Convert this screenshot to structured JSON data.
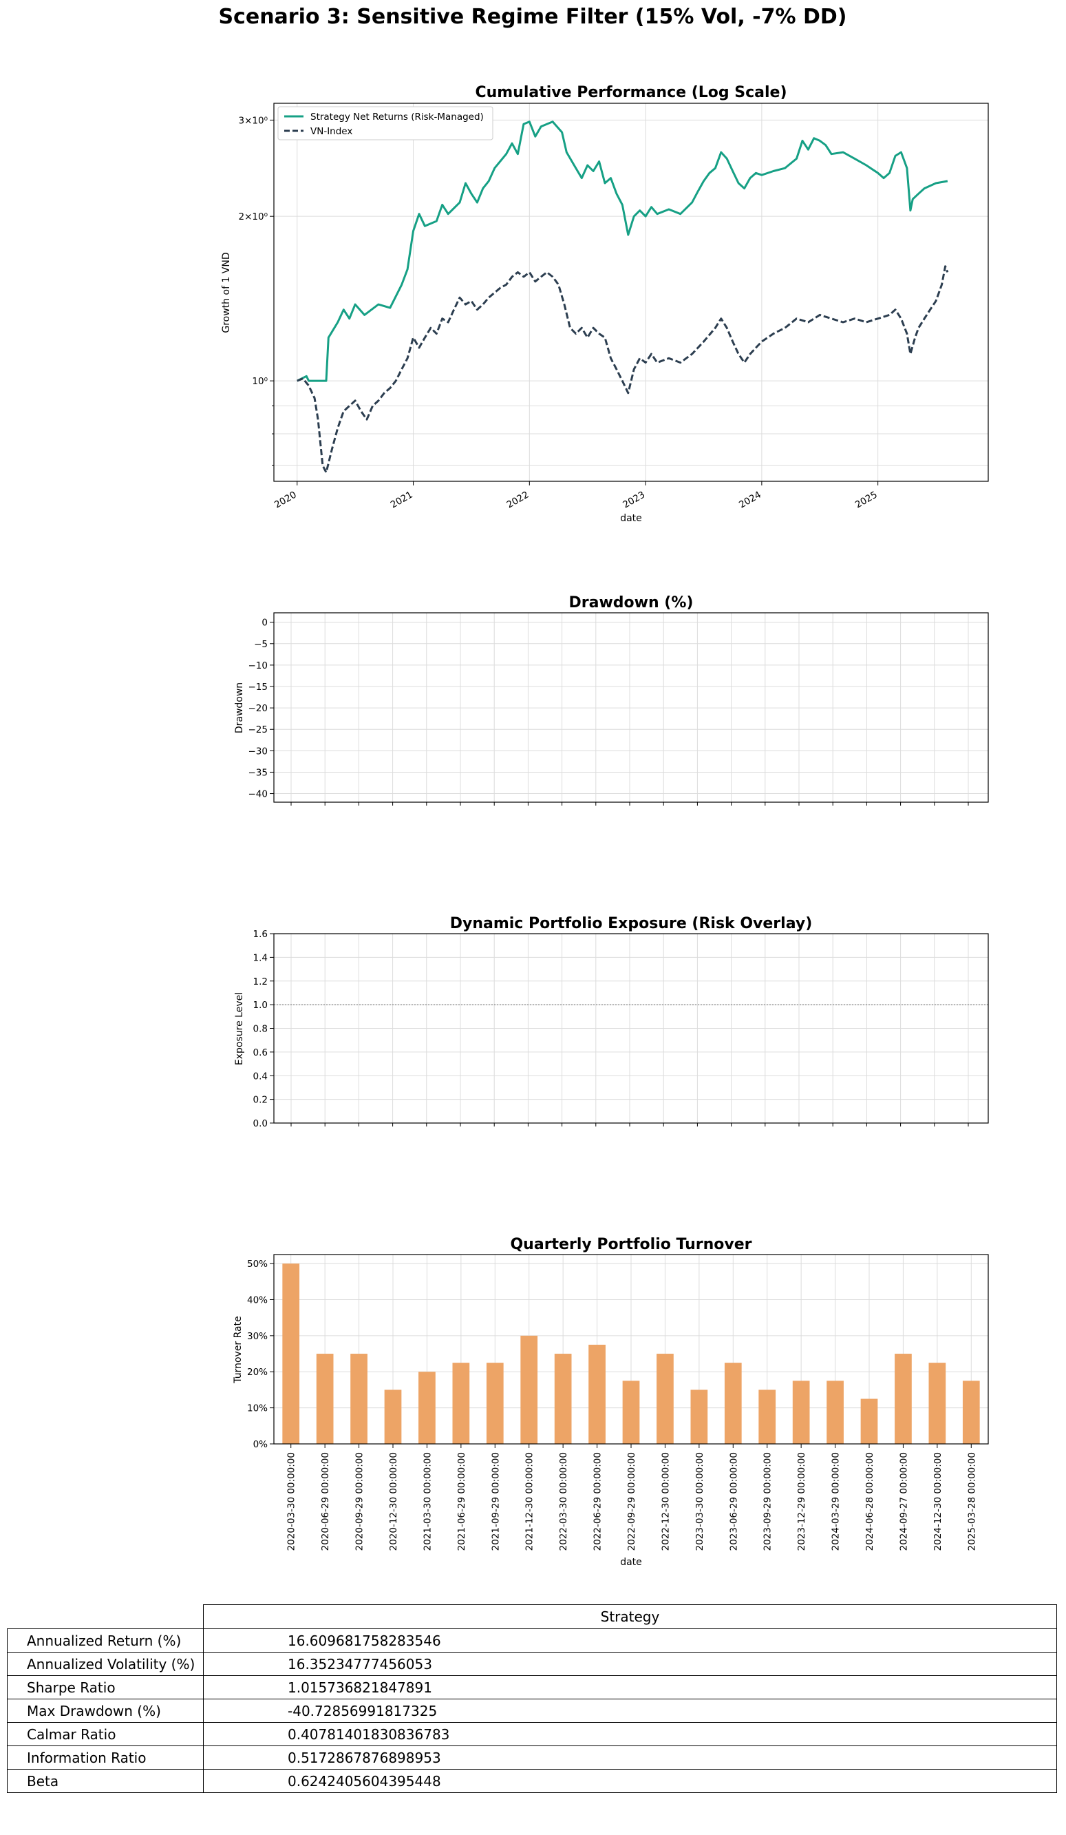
{
  "suptitle": "Scenario 3: Sensitive Regime Filter (15% Vol, -7% DD)",
  "colors": {
    "strategy": "#16a085",
    "benchmark": "#2c3e50",
    "bars": "#eda466",
    "exposure_line": "#888888",
    "grid": "#dcdcdc"
  },
  "chart_data": [
    {
      "type": "line",
      "title": "Cumulative Performance (Log Scale)",
      "xlabel": "date",
      "ylabel": "Growth of 1 VND",
      "yscale": "log",
      "ylim": [
        0.655,
        3.22
      ],
      "xlim": [
        2019.8,
        2025.95
      ],
      "ytick_labels": [
        {
          "value": 1,
          "label": "10⁰"
        },
        {
          "value": 2,
          "label": "2×10⁰"
        },
        {
          "value": 3,
          "label": "3×10⁰"
        }
      ],
      "yminor_ticks": [
        0.7,
        0.8,
        0.9
      ],
      "xtick_labels": [
        "2020",
        "2021",
        "2022",
        "2023",
        "2024",
        "2025"
      ],
      "xtick_values": [
        2020,
        2021,
        2022,
        2023,
        2024,
        2025
      ],
      "legend": {
        "placement": "top-left",
        "entries": [
          "Strategy Net Returns (Risk-Managed)",
          "VN-Index"
        ]
      },
      "series": [
        {
          "name": "Strategy Net Returns (Risk-Managed)",
          "style": "solid",
          "points": [
            [
              2020.0,
              1.0
            ],
            [
              2020.08,
              1.02
            ],
            [
              2020.1,
              1.0
            ],
            [
              2020.25,
              1.0
            ],
            [
              2020.27,
              1.2
            ],
            [
              2020.35,
              1.28
            ],
            [
              2020.4,
              1.35
            ],
            [
              2020.45,
              1.3
            ],
            [
              2020.5,
              1.38
            ],
            [
              2020.58,
              1.32
            ],
            [
              2020.7,
              1.38
            ],
            [
              2020.8,
              1.36
            ],
            [
              2020.9,
              1.5
            ],
            [
              2020.95,
              1.6
            ],
            [
              2021.0,
              1.88
            ],
            [
              2021.05,
              2.02
            ],
            [
              2021.1,
              1.92
            ],
            [
              2021.2,
              1.96
            ],
            [
              2021.25,
              2.1
            ],
            [
              2021.3,
              2.02
            ],
            [
              2021.4,
              2.12
            ],
            [
              2021.45,
              2.3
            ],
            [
              2021.5,
              2.2
            ],
            [
              2021.55,
              2.12
            ],
            [
              2021.6,
              2.25
            ],
            [
              2021.65,
              2.32
            ],
            [
              2021.7,
              2.45
            ],
            [
              2021.8,
              2.6
            ],
            [
              2021.85,
              2.72
            ],
            [
              2021.9,
              2.6
            ],
            [
              2021.95,
              2.95
            ],
            [
              2022.0,
              2.98
            ],
            [
              2022.05,
              2.8
            ],
            [
              2022.1,
              2.92
            ],
            [
              2022.15,
              2.95
            ],
            [
              2022.2,
              2.98
            ],
            [
              2022.28,
              2.85
            ],
            [
              2022.32,
              2.62
            ],
            [
              2022.4,
              2.45
            ],
            [
              2022.45,
              2.35
            ],
            [
              2022.5,
              2.48
            ],
            [
              2022.55,
              2.42
            ],
            [
              2022.6,
              2.52
            ],
            [
              2022.65,
              2.3
            ],
            [
              2022.7,
              2.35
            ],
            [
              2022.75,
              2.2
            ],
            [
              2022.8,
              2.1
            ],
            [
              2022.85,
              1.85
            ],
            [
              2022.9,
              2.0
            ],
            [
              2022.95,
              2.05
            ],
            [
              2023.0,
              2.0
            ],
            [
              2023.05,
              2.08
            ],
            [
              2023.1,
              2.02
            ],
            [
              2023.2,
              2.06
            ],
            [
              2023.3,
              2.02
            ],
            [
              2023.4,
              2.12
            ],
            [
              2023.45,
              2.22
            ],
            [
              2023.5,
              2.32
            ],
            [
              2023.55,
              2.4
            ],
            [
              2023.6,
              2.45
            ],
            [
              2023.65,
              2.62
            ],
            [
              2023.7,
              2.55
            ],
            [
              2023.75,
              2.42
            ],
            [
              2023.8,
              2.3
            ],
            [
              2023.85,
              2.25
            ],
            [
              2023.9,
              2.35
            ],
            [
              2023.95,
              2.4
            ],
            [
              2024.0,
              2.38
            ],
            [
              2024.1,
              2.42
            ],
            [
              2024.2,
              2.45
            ],
            [
              2024.3,
              2.55
            ],
            [
              2024.35,
              2.75
            ],
            [
              2024.4,
              2.65
            ],
            [
              2024.45,
              2.78
            ],
            [
              2024.5,
              2.75
            ],
            [
              2024.55,
              2.7
            ],
            [
              2024.6,
              2.6
            ],
            [
              2024.7,
              2.62
            ],
            [
              2024.8,
              2.55
            ],
            [
              2024.9,
              2.48
            ],
            [
              2025.0,
              2.4
            ],
            [
              2025.05,
              2.35
            ],
            [
              2025.1,
              2.4
            ],
            [
              2025.15,
              2.58
            ],
            [
              2025.2,
              2.62
            ],
            [
              2025.25,
              2.45
            ],
            [
              2025.28,
              2.05
            ],
            [
              2025.3,
              2.15
            ],
            [
              2025.35,
              2.2
            ],
            [
              2025.4,
              2.25
            ],
            [
              2025.5,
              2.3
            ],
            [
              2025.6,
              2.32
            ]
          ]
        },
        {
          "name": "VN-Index",
          "style": "dashed",
          "points": [
            [
              2020.0,
              1.0
            ],
            [
              2020.05,
              1.01
            ],
            [
              2020.1,
              0.98
            ],
            [
              2020.15,
              0.93
            ],
            [
              2020.18,
              0.85
            ],
            [
              2020.22,
              0.7
            ],
            [
              2020.25,
              0.68
            ],
            [
              2020.3,
              0.75
            ],
            [
              2020.35,
              0.82
            ],
            [
              2020.4,
              0.88
            ],
            [
              2020.45,
              0.9
            ],
            [
              2020.5,
              0.92
            ],
            [
              2020.55,
              0.88
            ],
            [
              2020.6,
              0.85
            ],
            [
              2020.65,
              0.9
            ],
            [
              2020.7,
              0.92
            ],
            [
              2020.75,
              0.95
            ],
            [
              2020.8,
              0.97
            ],
            [
              2020.85,
              1.0
            ],
            [
              2020.9,
              1.05
            ],
            [
              2020.95,
              1.1
            ],
            [
              2021.0,
              1.2
            ],
            [
              2021.05,
              1.15
            ],
            [
              2021.1,
              1.2
            ],
            [
              2021.15,
              1.25
            ],
            [
              2021.2,
              1.22
            ],
            [
              2021.25,
              1.3
            ],
            [
              2021.3,
              1.28
            ],
            [
              2021.35,
              1.35
            ],
            [
              2021.4,
              1.42
            ],
            [
              2021.45,
              1.38
            ],
            [
              2021.5,
              1.4
            ],
            [
              2021.55,
              1.35
            ],
            [
              2021.6,
              1.38
            ],
            [
              2021.65,
              1.42
            ],
            [
              2021.7,
              1.45
            ],
            [
              2021.75,
              1.48
            ],
            [
              2021.8,
              1.5
            ],
            [
              2021.85,
              1.55
            ],
            [
              2021.9,
              1.58
            ],
            [
              2021.95,
              1.55
            ],
            [
              2022.0,
              1.58
            ],
            [
              2022.05,
              1.52
            ],
            [
              2022.1,
              1.55
            ],
            [
              2022.15,
              1.58
            ],
            [
              2022.2,
              1.55
            ],
            [
              2022.25,
              1.5
            ],
            [
              2022.3,
              1.38
            ],
            [
              2022.35,
              1.25
            ],
            [
              2022.4,
              1.22
            ],
            [
              2022.45,
              1.25
            ],
            [
              2022.5,
              1.2
            ],
            [
              2022.55,
              1.25
            ],
            [
              2022.6,
              1.22
            ],
            [
              2022.65,
              1.2
            ],
            [
              2022.7,
              1.1
            ],
            [
              2022.75,
              1.05
            ],
            [
              2022.8,
              1.0
            ],
            [
              2022.85,
              0.95
            ],
            [
              2022.9,
              1.05
            ],
            [
              2022.95,
              1.1
            ],
            [
              2023.0,
              1.08
            ],
            [
              2023.05,
              1.12
            ],
            [
              2023.1,
              1.08
            ],
            [
              2023.2,
              1.1
            ],
            [
              2023.3,
              1.08
            ],
            [
              2023.4,
              1.12
            ],
            [
              2023.5,
              1.18
            ],
            [
              2023.6,
              1.25
            ],
            [
              2023.65,
              1.3
            ],
            [
              2023.7,
              1.25
            ],
            [
              2023.75,
              1.18
            ],
            [
              2023.8,
              1.12
            ],
            [
              2023.85,
              1.08
            ],
            [
              2023.9,
              1.12
            ],
            [
              2023.95,
              1.15
            ],
            [
              2024.0,
              1.18
            ],
            [
              2024.1,
              1.22
            ],
            [
              2024.2,
              1.25
            ],
            [
              2024.3,
              1.3
            ],
            [
              2024.4,
              1.28
            ],
            [
              2024.5,
              1.32
            ],
            [
              2024.6,
              1.3
            ],
            [
              2024.7,
              1.28
            ],
            [
              2024.8,
              1.3
            ],
            [
              2024.9,
              1.28
            ],
            [
              2025.0,
              1.3
            ],
            [
              2025.1,
              1.32
            ],
            [
              2025.15,
              1.35
            ],
            [
              2025.2,
              1.3
            ],
            [
              2025.25,
              1.22
            ],
            [
              2025.28,
              1.12
            ],
            [
              2025.32,
              1.2
            ],
            [
              2025.35,
              1.25
            ],
            [
              2025.4,
              1.3
            ],
            [
              2025.45,
              1.35
            ],
            [
              2025.5,
              1.4
            ],
            [
              2025.55,
              1.5
            ],
            [
              2025.58,
              1.62
            ],
            [
              2025.6,
              1.58
            ]
          ]
        }
      ]
    },
    {
      "type": "line",
      "title": "Drawdown (%)",
      "xlabel": "",
      "ylabel": "Drawdown",
      "ylim": [
        -42,
        2.2
      ],
      "ytick_labels": [
        "0",
        "−5",
        "−10",
        "−15",
        "−20",
        "−25",
        "−30",
        "−35",
        "−40"
      ],
      "ytick_values": [
        0,
        -5,
        -10,
        -15,
        -20,
        -25,
        -30,
        -35,
        -40
      ],
      "series": []
    },
    {
      "type": "line",
      "title": "Dynamic Portfolio Exposure (Risk Overlay)",
      "xlabel": "",
      "ylabel": "Exposure Level",
      "ylim": [
        0.0,
        1.6
      ],
      "ytick_labels": [
        "0.0",
        "0.2",
        "0.4",
        "0.6",
        "0.8",
        "1.0",
        "1.2",
        "1.4",
        "1.6"
      ],
      "ytick_values": [
        0.0,
        0.2,
        0.4,
        0.6,
        0.8,
        1.0,
        1.2,
        1.4,
        1.6
      ],
      "reference_line": 1.0,
      "series": []
    },
    {
      "type": "bar",
      "title": "Quarterly Portfolio Turnover",
      "xlabel": "date",
      "ylabel": "Turnover Rate",
      "ylim": [
        0,
        0.525
      ],
      "ytick_labels": [
        "0%",
        "10%",
        "20%",
        "30%",
        "40%",
        "50%"
      ],
      "ytick_values": [
        0,
        0.1,
        0.2,
        0.3,
        0.4,
        0.5
      ],
      "categories": [
        "2020-03-30 00:00:00",
        "2020-06-29 00:00:00",
        "2020-09-29 00:00:00",
        "2020-12-30 00:00:00",
        "2021-03-30 00:00:00",
        "2021-06-29 00:00:00",
        "2021-09-29 00:00:00",
        "2021-12-30 00:00:00",
        "2022-03-30 00:00:00",
        "2022-06-29 00:00:00",
        "2022-09-29 00:00:00",
        "2022-12-30 00:00:00",
        "2023-03-30 00:00:00",
        "2023-06-29 00:00:00",
        "2023-09-29 00:00:00",
        "2023-12-29 00:00:00",
        "2024-03-29 00:00:00",
        "2024-06-28 00:00:00",
        "2024-09-27 00:00:00",
        "2024-12-30 00:00:00",
        "2025-03-28 00:00:00"
      ],
      "values": [
        0.5,
        0.25,
        0.25,
        0.15,
        0.2,
        0.225,
        0.225,
        0.3,
        0.25,
        0.275,
        0.175,
        0.25,
        0.15,
        0.225,
        0.15,
        0.175,
        0.175,
        0.125,
        0.25,
        0.225,
        0.175
      ]
    }
  ],
  "stats_table": {
    "column_header": "Strategy",
    "rows": [
      {
        "label": "Annualized Return (%)",
        "value": "16.609681758283546"
      },
      {
        "label": "Annualized Volatility (%)",
        "value": "16.35234777456053"
      },
      {
        "label": "Sharpe Ratio",
        "value": "1.015736821847891"
      },
      {
        "label": "Max Drawdown (%)",
        "value": "-40.72856991817325"
      },
      {
        "label": "Calmar Ratio",
        "value": "0.40781401830836783"
      },
      {
        "label": "Information Ratio",
        "value": "0.5172867876898953"
      },
      {
        "label": "Beta",
        "value": "0.6242405604395448"
      }
    ]
  }
}
